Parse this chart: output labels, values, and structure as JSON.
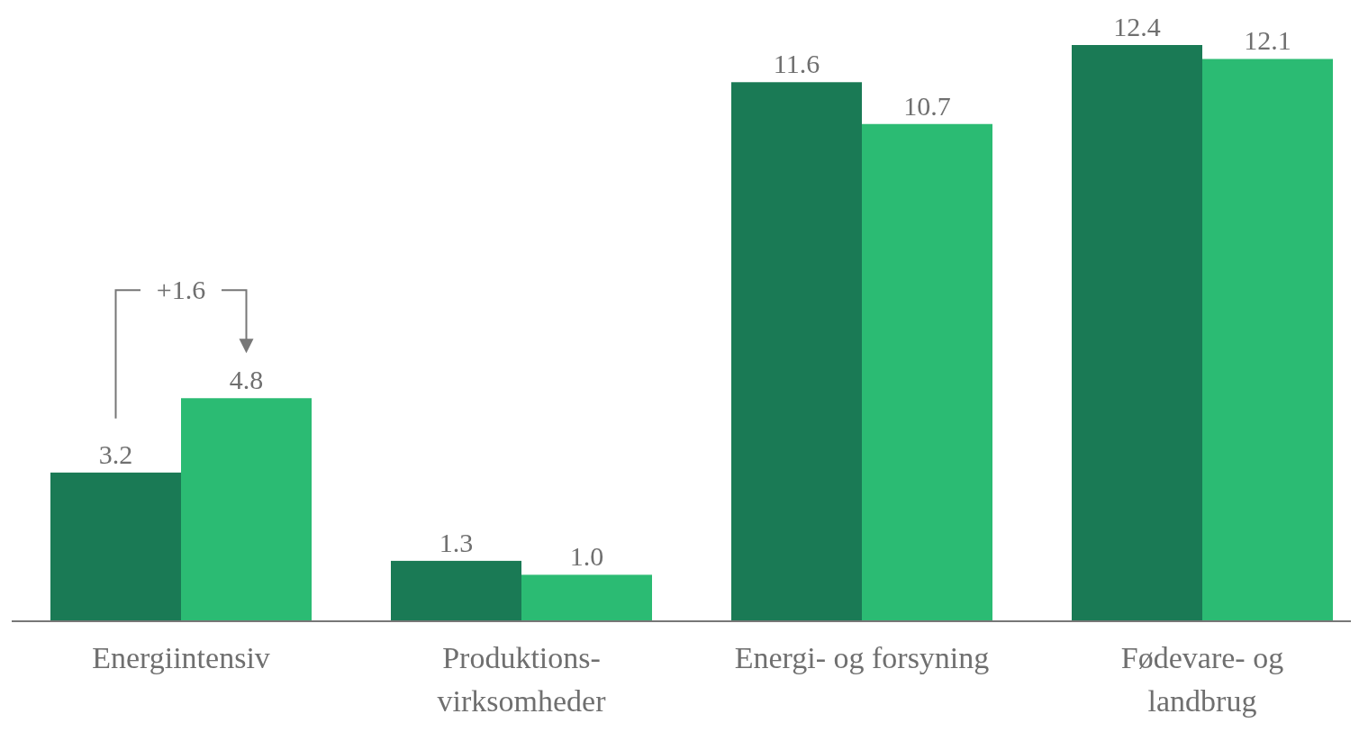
{
  "chart_data": {
    "type": "bar",
    "categories": [
      "Energiintensiv",
      "Produktions- virksomheder",
      "Energi- og forsyning",
      "Fødevare- og landbrug"
    ],
    "series": [
      {
        "color": "#1a7a55",
        "values": [
          3.2,
          1.3,
          11.6,
          12.4
        ],
        "value_labels": [
          "3.2",
          "1.3",
          "11.6",
          "12.4"
        ]
      },
      {
        "color": "#2bbb73",
        "values": [
          4.8,
          1.0,
          10.7,
          12.1
        ],
        "value_labels": [
          "4.8",
          "1.0",
          "10.7",
          "12.1"
        ]
      }
    ],
    "relative": false,
    "annotations": [
      "+1.6"
    ]
  }
}
